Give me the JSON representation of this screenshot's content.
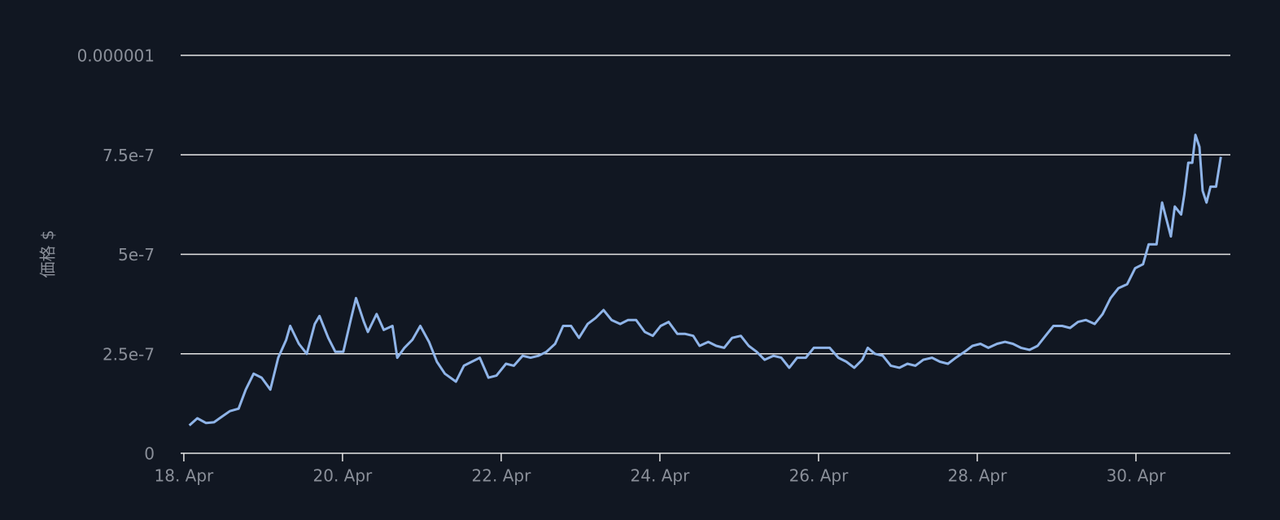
{
  "chart_data": {
    "type": "line",
    "y_label": "価格 $",
    "x": [
      18.07,
      18.17,
      18.28,
      18.38,
      18.48,
      18.58,
      18.69,
      18.78,
      18.88,
      18.98,
      19.09,
      19.19,
      19.29,
      19.34,
      19.45,
      19.55,
      19.65,
      19.71,
      19.82,
      19.91,
      20.01,
      20.11,
      20.17,
      20.27,
      20.32,
      20.43,
      20.52,
      20.63,
      20.69,
      20.78,
      20.88,
      20.98,
      21.09,
      21.19,
      21.29,
      21.43,
      21.53,
      21.63,
      21.73,
      21.84,
      21.94,
      22.06,
      22.16,
      22.27,
      22.37,
      22.47,
      22.57,
      22.68,
      22.78,
      22.88,
      22.98,
      23.09,
      23.19,
      23.29,
      23.39,
      23.5,
      23.6,
      23.7,
      23.81,
      23.91,
      24.01,
      24.11,
      24.22,
      24.32,
      24.42,
      24.5,
      24.61,
      24.71,
      24.81,
      24.91,
      25.02,
      25.12,
      25.22,
      25.32,
      25.43,
      25.53,
      25.63,
      25.73,
      25.84,
      25.94,
      26.04,
      26.14,
      26.25,
      26.35,
      26.45,
      26.55,
      26.62,
      26.71,
      26.81,
      26.91,
      27.02,
      27.12,
      27.22,
      27.32,
      27.43,
      27.53,
      27.63,
      27.73,
      27.84,
      27.94,
      28.04,
      28.14,
      28.25,
      28.35,
      28.45,
      28.55,
      28.66,
      28.76,
      28.86,
      28.96,
      29.07,
      29.17,
      29.27,
      29.37,
      29.48,
      29.58,
      29.68,
      29.78,
      29.89,
      29.99,
      30.09,
      30.16,
      30.26,
      30.33,
      30.44,
      30.49,
      30.57,
      30.61,
      30.66,
      30.71,
      30.75,
      30.8,
      30.84,
      30.89,
      30.94,
      31.01,
      31.07
    ],
    "values": [
      7e-08,
      8.8e-08,
      7.6e-08,
      7.8e-08,
      9.2e-08,
      1.06e-07,
      1.12e-07,
      1.6e-07,
      2e-07,
      1.9e-07,
      1.6e-07,
      2.4e-07,
      2.85e-07,
      3.2e-07,
      2.75e-07,
      2.5e-07,
      3.25e-07,
      3.45e-07,
      2.9e-07,
      2.55e-07,
      2.55e-07,
      3.4e-07,
      3.9e-07,
      3.3e-07,
      3.05e-07,
      3.5e-07,
      3.1e-07,
      3.2e-07,
      2.4e-07,
      2.65e-07,
      2.85e-07,
      3.2e-07,
      2.8e-07,
      2.3e-07,
      2e-07,
      1.8e-07,
      2.2e-07,
      2.3e-07,
      2.4e-07,
      1.9e-07,
      1.95e-07,
      2.25e-07,
      2.2e-07,
      2.45e-07,
      2.4e-07,
      2.45e-07,
      2.55e-07,
      2.75e-07,
      3.2e-07,
      3.2e-07,
      2.9e-07,
      3.25e-07,
      3.4e-07,
      3.6e-07,
      3.35e-07,
      3.25e-07,
      3.35e-07,
      3.35e-07,
      3.05e-07,
      2.95e-07,
      3.2e-07,
      3.3e-07,
      3e-07,
      3e-07,
      2.95e-07,
      2.7e-07,
      2.8e-07,
      2.7e-07,
      2.65e-07,
      2.9e-07,
      2.95e-07,
      2.7e-07,
      2.55e-07,
      2.35e-07,
      2.45e-07,
      2.4e-07,
      2.15e-07,
      2.4e-07,
      2.4e-07,
      2.65e-07,
      2.65e-07,
      2.65e-07,
      2.4e-07,
      2.3e-07,
      2.15e-07,
      2.35e-07,
      2.65e-07,
      2.5e-07,
      2.45e-07,
      2.2e-07,
      2.15e-07,
      2.25e-07,
      2.2e-07,
      2.35e-07,
      2.4e-07,
      2.3e-07,
      2.25e-07,
      2.4e-07,
      2.55e-07,
      2.7e-07,
      2.75e-07,
      2.65e-07,
      2.75e-07,
      2.8e-07,
      2.75e-07,
      2.65e-07,
      2.6e-07,
      2.7e-07,
      2.95e-07,
      3.2e-07,
      3.2e-07,
      3.15e-07,
      3.3e-07,
      3.35e-07,
      3.25e-07,
      3.5e-07,
      3.9e-07,
      4.15e-07,
      4.25e-07,
      4.65e-07,
      4.75e-07,
      5.25e-07,
      5.25e-07,
      6.3e-07,
      5.45e-07,
      6.2e-07,
      6e-07,
      6.5e-07,
      7.3e-07,
      7.3e-07,
      8e-07,
      7.7e-07,
      6.6e-07,
      6.3e-07,
      6.7e-07,
      6.7e-07,
      7.45e-07
    ],
    "color": "#8fb4e8",
    "xlim": [
      17.96,
      31.19
    ],
    "xticks": [
      {
        "value": 18,
        "label": "18. Apr"
      },
      {
        "value": 20,
        "label": "20. Apr"
      },
      {
        "value": 22,
        "label": "22. Apr"
      },
      {
        "value": 24,
        "label": "24. Apr"
      },
      {
        "value": 26,
        "label": "26. Apr"
      },
      {
        "value": 28,
        "label": "28. Apr"
      },
      {
        "value": 30,
        "label": "30. Apr"
      }
    ],
    "ylim": [
      0,
      1e-06
    ],
    "yticks": [
      0,
      2.5e-07,
      5e-07,
      7.5e-07,
      1e-06
    ],
    "grid": true
  }
}
